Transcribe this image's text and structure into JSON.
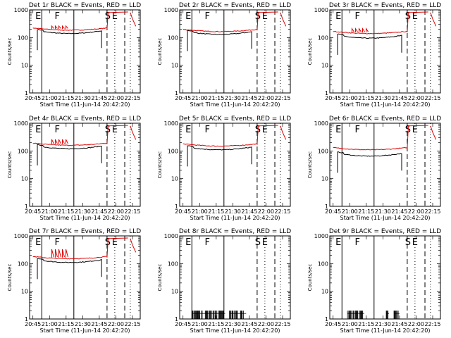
{
  "figure": {
    "x_tick_labels": [
      "20:45",
      "21:00",
      "21:15",
      "21:30",
      "21:45",
      "22:00",
      "22:15"
    ],
    "y_tick_labels": [
      "1",
      "10",
      "100",
      "1000"
    ],
    "ylabel": "Counts/sec",
    "xlabel": "Start Time (11-Jun-14 20:42:20)",
    "marker_labels": {
      "E": "E",
      "F": "F",
      "S": "S"
    },
    "colors": {
      "events": "#000000",
      "lld": "#dd0000"
    }
  },
  "chart_data": [
    {
      "type": "line",
      "title": "Det 1r BLACK = Events, RED = LLD",
      "xlabel": "Start Time (11-Jun-14 20:42:20)",
      "ylabel": "Counts/sec",
      "ylim": [
        1,
        1000
      ],
      "y_scale": "log",
      "x_range": [
        "20:42",
        "22:22"
      ],
      "series": [
        {
          "name": "Events",
          "color": "#000000",
          "level": 140,
          "segments": [
            [
              "20:49",
              "21:47"
            ]
          ]
        },
        {
          "name": "LLD",
          "color": "#dd0000",
          "level": 185,
          "spikes": 5,
          "spike_peak": 260,
          "post_level": 800
        }
      ],
      "markers": {
        "solid": [
          "20:53",
          "21:22"
        ],
        "dashed": [
          "21:52",
          "22:08"
        ],
        "dotted": [
          "21:59",
          "22:13"
        ]
      }
    },
    {
      "type": "line",
      "title": "Det 2r BLACK = Events, RED = LLD",
      "xlabel": "Start Time (11-Jun-14 20:42:20)",
      "ylabel": "Counts/sec",
      "ylim": [
        1,
        1000
      ],
      "y_scale": "log",
      "x_range": [
        "20:42",
        "22:22"
      ],
      "series": [
        {
          "name": "Events",
          "color": "#000000",
          "level": 130,
          "segments": [
            [
              "20:49",
              "21:47"
            ]
          ]
        },
        {
          "name": "LLD",
          "color": "#dd0000",
          "level": 165,
          "spikes": 0,
          "post_level": 800
        }
      ],
      "markers": {
        "solid": [
          "20:53",
          "21:22"
        ],
        "dashed": [
          "21:52",
          "22:08"
        ],
        "dotted": [
          "21:59",
          "22:13"
        ]
      }
    },
    {
      "type": "line",
      "title": "Det 3r BLACK = Events, RED = LLD",
      "xlabel": "Start Time (11-Jun-14 20:42:20)",
      "ylabel": "Counts/sec",
      "ylim": [
        1,
        1000
      ],
      "y_scale": "log",
      "x_range": [
        "20:42",
        "22:22"
      ],
      "series": [
        {
          "name": "Events",
          "color": "#000000",
          "level": 95,
          "segments": [
            [
              "20:49",
              "21:47"
            ]
          ]
        },
        {
          "name": "LLD",
          "color": "#dd0000",
          "level": 140,
          "spikes": 5,
          "spike_peak": 210,
          "post_level": 800
        }
      ],
      "markers": {
        "solid": [
          "20:53",
          "21:22"
        ],
        "dashed": [
          "21:52",
          "22:08"
        ],
        "dotted": [
          "21:59",
          "22:13"
        ]
      }
    },
    {
      "type": "line",
      "title": "Det 4r BLACK = Events, RED = LLD",
      "xlabel": "Start Time (11-Jun-14 20:42:20)",
      "ylabel": "Counts/sec",
      "ylim": [
        1,
        1000
      ],
      "y_scale": "log",
      "x_range": [
        "20:42",
        "22:22"
      ],
      "series": [
        {
          "name": "Events",
          "color": "#000000",
          "level": 120,
          "segments": [
            [
              "20:49",
              "21:47"
            ]
          ]
        },
        {
          "name": "LLD",
          "color": "#dd0000",
          "level": 160,
          "spikes": 5,
          "spike_peak": 260,
          "post_level": 800
        }
      ],
      "markers": {
        "solid": [
          "20:53",
          "21:22"
        ],
        "dashed": [
          "21:52",
          "22:08"
        ],
        "dotted": [
          "21:59",
          "22:13"
        ]
      }
    },
    {
      "type": "line",
      "title": "Det 5r BLACK = Events, RED = LLD",
      "xlabel": "Start Time (11-Jun-14 20:42:20)",
      "ylabel": "Counts/sec",
      "ylim": [
        1,
        1000
      ],
      "y_scale": "log",
      "x_range": [
        "20:42",
        "22:22"
      ],
      "series": [
        {
          "name": "Events",
          "color": "#000000",
          "level": 110,
          "segments": [
            [
              "20:49",
              "21:47"
            ]
          ]
        },
        {
          "name": "LLD",
          "color": "#dd0000",
          "level": 150,
          "spikes": 0,
          "post_level": 800
        }
      ],
      "markers": {
        "solid": [
          "20:53",
          "21:22"
        ],
        "dashed": [
          "21:52",
          "22:08"
        ],
        "dotted": [
          "21:59",
          "22:13"
        ]
      }
    },
    {
      "type": "line",
      "title": "Det 6r BLACK = Events, RED = LLD",
      "xlabel": "Start Time (11-Jun-14 20:42:20)",
      "ylabel": "Counts/sec",
      "ylim": [
        1,
        1000
      ],
      "y_scale": "log",
      "x_range": [
        "20:42",
        "22:22"
      ],
      "series": [
        {
          "name": "Events",
          "color": "#000000",
          "level": 65,
          "segments": [
            [
              "20:49",
              "21:47"
            ]
          ]
        },
        {
          "name": "LLD",
          "color": "#dd0000",
          "level": 110,
          "spikes": 0,
          "post_level": 800
        }
      ],
      "markers": {
        "solid": [
          "20:53",
          "21:22"
        ],
        "dashed": [
          "21:52",
          "22:08"
        ],
        "dotted": [
          "21:59",
          "22:13"
        ]
      }
    },
    {
      "type": "line",
      "title": "Det 7r BLACK = Events, RED = LLD",
      "xlabel": "Start Time (11-Jun-14 20:42:20)",
      "ylabel": "Counts/sec",
      "ylim": [
        1,
        1000
      ],
      "y_scale": "log",
      "x_range": [
        "20:42",
        "22:22"
      ],
      "series": [
        {
          "name": "Events",
          "color": "#000000",
          "level": 110,
          "segments": [
            [
              "20:49",
              "21:47"
            ]
          ]
        },
        {
          "name": "LLD",
          "color": "#dd0000",
          "level": 150,
          "spikes": 5,
          "spike_peak": 330,
          "post_level": 800
        }
      ],
      "markers": {
        "solid": [
          "20:53",
          "21:22"
        ],
        "dashed": [
          "21:52",
          "22:08"
        ],
        "dotted": [
          "21:59",
          "22:13"
        ]
      }
    },
    {
      "type": "line",
      "title": "Det 8r BLACK = Events, RED = LLD",
      "xlabel": "Start Time (11-Jun-14 20:42:20)",
      "ylabel": "Counts/sec",
      "ylim": [
        1,
        1000
      ],
      "y_scale": "log",
      "x_range": [
        "20:42",
        "22:22"
      ],
      "series": [
        {
          "name": "Events",
          "color": "#000000",
          "sparse": true,
          "low": 1,
          "high": 2,
          "segments": [
            [
              "20:53",
              "21:22"
            ],
            [
              "21:27",
              "21:40"
            ]
          ]
        }
      ],
      "markers": {
        "solid": [
          "20:53",
          "21:22"
        ],
        "dashed": [
          "21:52",
          "22:08"
        ],
        "dotted": [
          "21:59",
          "22:13"
        ]
      }
    },
    {
      "type": "line",
      "title": "Det 9r BLACK = Events, RED = LLD",
      "xlabel": "Start Time (11-Jun-14 20:42:20)",
      "ylabel": "Counts/sec",
      "ylim": [
        1,
        1000
      ],
      "y_scale": "log",
      "x_range": [
        "20:42",
        "22:22"
      ],
      "series": [
        {
          "name": "Events",
          "color": "#000000",
          "sparse": true,
          "low": 1,
          "high": 2,
          "segments": [
            [
              "20:58",
              "21:12"
            ],
            [
              "21:33",
              "21:35"
            ],
            [
              "21:40",
              "21:44"
            ]
          ]
        }
      ],
      "markers": {
        "solid": [
          "20:53",
          "21:22"
        ],
        "dashed": [
          "21:52",
          "22:08"
        ],
        "dotted": [
          "21:59",
          "22:13"
        ]
      }
    }
  ]
}
